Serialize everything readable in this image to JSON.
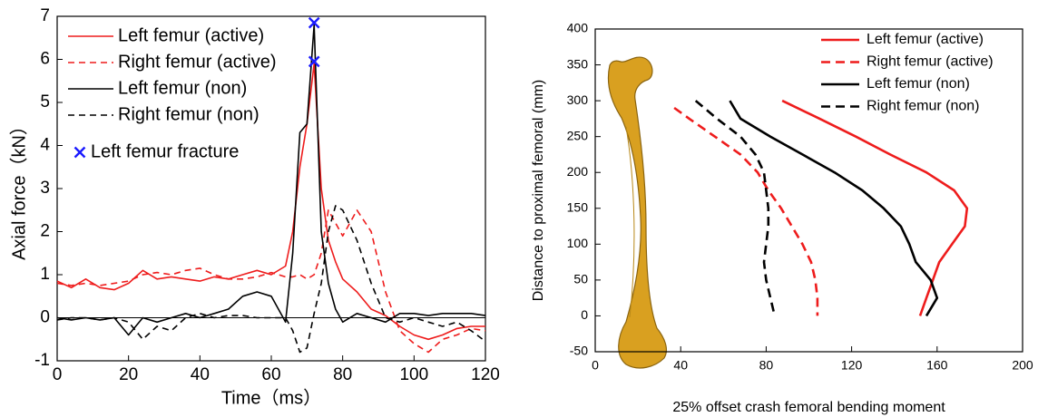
{
  "chart_data": [
    {
      "type": "line",
      "xlabel": "Time（ms）",
      "ylabel": "Axial force（kN）",
      "x": [
        0,
        4,
        8,
        12,
        16,
        20,
        24,
        28,
        32,
        36,
        40,
        44,
        48,
        52,
        56,
        60,
        64,
        66,
        68,
        70,
        72,
        74,
        76,
        78,
        80,
        84,
        88,
        92,
        96,
        100,
        104,
        108,
        112,
        116,
        120
      ],
      "series": [
        {
          "name": "Left femur (active)",
          "color": "#ee1c1c",
          "linestyle": "solid",
          "values": [
            0.85,
            0.7,
            0.9,
            0.7,
            0.65,
            0.8,
            1.1,
            0.9,
            0.95,
            0.9,
            0.85,
            0.95,
            0.9,
            1.0,
            1.1,
            1.0,
            1.2,
            2.0,
            3.5,
            4.5,
            5.9,
            3.0,
            1.8,
            1.3,
            0.9,
            0.6,
            0.2,
            0.05,
            -0.2,
            -0.4,
            -0.5,
            -0.4,
            -0.25,
            -0.2,
            -0.2
          ]
        },
        {
          "name": "Right femur (active)",
          "color": "#ee1c1c",
          "linestyle": "dashed",
          "values": [
            0.8,
            0.75,
            0.8,
            0.75,
            0.8,
            0.85,
            1.0,
            1.05,
            1.0,
            1.1,
            1.15,
            1.0,
            0.9,
            0.9,
            0.95,
            1.05,
            0.95,
            0.95,
            1.0,
            0.9,
            1.0,
            1.5,
            2.5,
            2.2,
            1.9,
            2.5,
            2.0,
            0.6,
            -0.3,
            -0.6,
            -0.8,
            -0.5,
            -0.4,
            -0.25,
            -0.3
          ]
        },
        {
          "name": "Left femur (non)",
          "color": "#000000",
          "linestyle": "solid",
          "values": [
            0,
            -0.05,
            0,
            -0.05,
            0,
            -0.4,
            0,
            -0.1,
            0,
            0.1,
            0,
            0.1,
            0.2,
            0.5,
            0.6,
            0.5,
            -0.1,
            1.5,
            4.3,
            4.5,
            6.8,
            2.0,
            0.8,
            0.2,
            -0.1,
            0.1,
            0,
            -0.1,
            0.1,
            0.1,
            0.05,
            0.1,
            0.1,
            0.1,
            0.05
          ]
        },
        {
          "name": "Right femur (non)",
          "color": "#000000",
          "linestyle": "dashed",
          "values": [
            -0.05,
            0,
            0,
            -0.05,
            0,
            -0.1,
            -0.5,
            -0.2,
            -0.3,
            0,
            0.1,
            0,
            0.05,
            0.05,
            0,
            0,
            0,
            -0.3,
            -0.8,
            -0.7,
            0.1,
            0.8,
            2.0,
            2.6,
            2.5,
            1.8,
            0.8,
            0,
            -0.1,
            0,
            -0.1,
            -0.2,
            -0.1,
            -0.3,
            -0.55
          ]
        }
      ],
      "markers": {
        "name": "Left femur fracture",
        "color": "#1a1aff",
        "marker": "x",
        "x": [
          72,
          72
        ],
        "values": [
          6.85,
          5.95
        ]
      },
      "zero_line": true,
      "xlim": [
        0,
        120
      ],
      "xticks": [
        0,
        20,
        40,
        60,
        80,
        100,
        120
      ],
      "ylim": [
        -1,
        7
      ],
      "yticks": [
        -1,
        0,
        1,
        2,
        3,
        4,
        5,
        6,
        7
      ],
      "legend": "upper left"
    },
    {
      "type": "line",
      "orientation": "horizontal",
      "xlabel": "25% offset crash femoral bending moment",
      "ylabel": "Distance to proximal femoral (mm)",
      "series": [
        {
          "name": "Left femur (active)",
          "color": "#ee1c1c",
          "linestyle": "solid",
          "y": [
            300,
            275,
            250,
            225,
            200,
            175,
            150,
            125,
            100,
            75,
            50,
            25,
            0
          ],
          "values": [
            87.5,
            105,
            122,
            138,
            155,
            168,
            174,
            173,
            167,
            161,
            158,
            155,
            152
          ]
        },
        {
          "name": "Right femur (active)",
          "color": "#ee1c1c",
          "linestyle": "dashed",
          "y": [
            290,
            275,
            250,
            225,
            200,
            175,
            150,
            125,
            100,
            75,
            50,
            25,
            0
          ],
          "values": [
            37,
            44,
            56,
            68,
            76,
            81,
            87,
            92,
            97,
            101,
            103,
            104,
            104
          ]
        },
        {
          "name": "Left femur (non)",
          "color": "#000000",
          "linestyle": "solid",
          "y": [
            300,
            275,
            250,
            225,
            200,
            175,
            150,
            125,
            100,
            75,
            50,
            25,
            0
          ],
          "values": [
            63,
            68,
            82,
            97,
            112,
            125,
            135,
            143,
            147,
            150,
            157,
            160,
            155
          ]
        },
        {
          "name": "Right femur (non)",
          "color": "#000000",
          "linestyle": "dashed",
          "y": [
            300,
            275,
            250,
            225,
            200,
            175,
            150,
            125,
            100,
            75,
            50,
            25,
            0
          ],
          "values": [
            47,
            57,
            68,
            75,
            79,
            80,
            81,
            81,
            80,
            79,
            80,
            82,
            84
          ]
        }
      ],
      "xlim": [
        0,
        200
      ],
      "xticks": [
        0,
        40,
        80,
        120,
        160,
        200
      ],
      "ylim": [
        -50,
        400
      ],
      "yticks": [
        -50,
        0,
        50,
        100,
        150,
        200,
        250,
        300,
        350,
        400
      ],
      "legend": "upper right"
    }
  ]
}
